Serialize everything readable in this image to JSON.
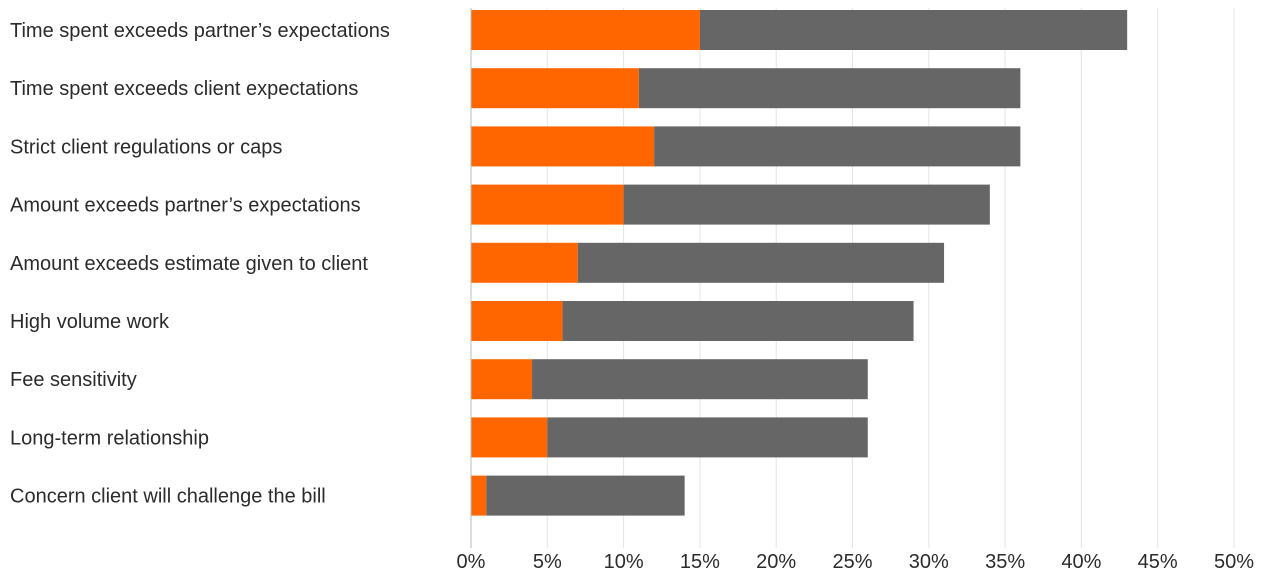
{
  "chart_data": {
    "type": "bar",
    "orientation": "horizontal",
    "stacked": true,
    "categories": [
      "Time spent exceeds partner’s expectations",
      "Time spent exceeds client expectations",
      "Strict client regulations or caps",
      "Amount exceeds partner’s expectations",
      "Amount exceeds estimate given to client",
      "High volume work",
      "Fee sensitivity",
      "Long-term relationship",
      "Concern client will challenge the bill"
    ],
    "series": [
      {
        "color": "#ff6600",
        "values": [
          15,
          11,
          12,
          10,
          7,
          6,
          4,
          5,
          1
        ]
      },
      {
        "color": "#666666",
        "values": [
          28,
          25,
          24,
          24,
          24,
          23,
          22,
          21,
          13
        ]
      }
    ],
    "xlim": [
      0,
      50
    ],
    "xticks": [
      0,
      5,
      10,
      15,
      20,
      25,
      30,
      35,
      40,
      45,
      50
    ],
    "xtick_labels": [
      "0%",
      "5%",
      "10%",
      "15%",
      "20%",
      "25%",
      "30%",
      "35%",
      "40%",
      "45%",
      "50%"
    ],
    "title": "",
    "xlabel": "",
    "ylabel": "",
    "grid": "vertical",
    "legend": "none"
  }
}
